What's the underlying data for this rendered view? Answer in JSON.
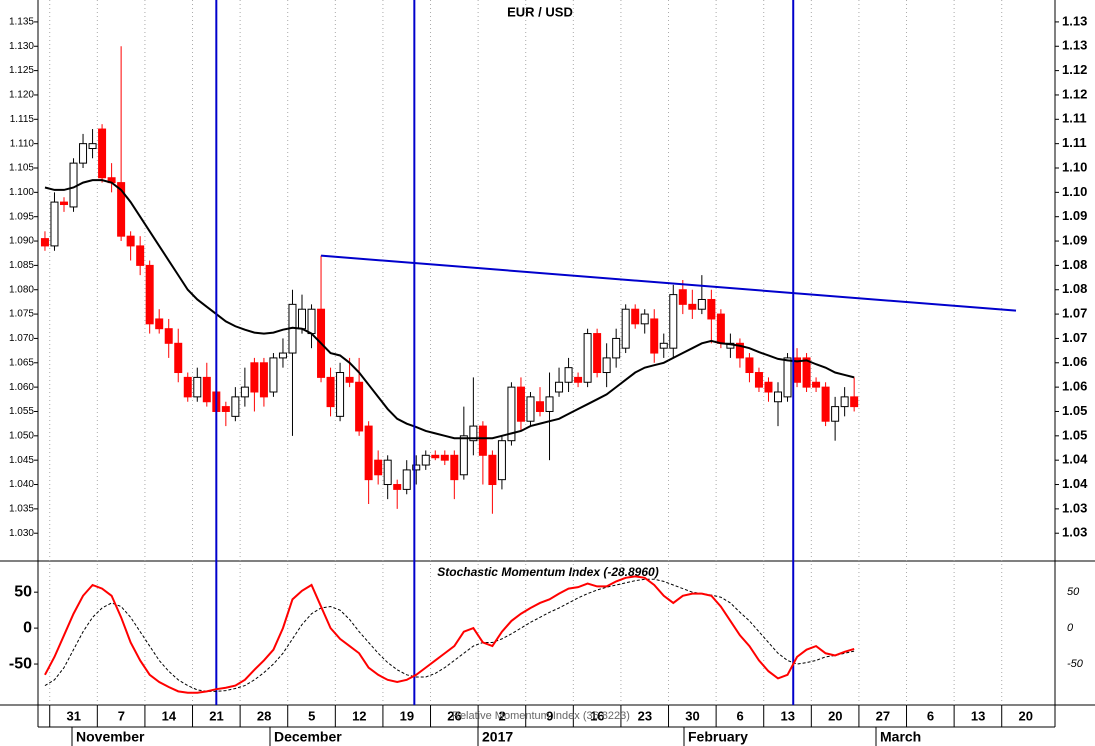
{
  "chart_data": {
    "type": "candlestick",
    "title": "EUR / USD",
    "categories": [
      null,
      "31",
      null,
      null,
      null,
      null,
      "7",
      null,
      null,
      null,
      null,
      "14",
      null,
      null,
      null,
      null,
      "21",
      null,
      null,
      null,
      null,
      "28",
      null,
      null,
      null,
      null,
      "5",
      null,
      null,
      null,
      null,
      "12",
      null,
      null,
      null,
      null,
      "19",
      null,
      null,
      null,
      null,
      "26",
      null,
      null,
      null,
      null,
      "2",
      null,
      null,
      null,
      null,
      "9",
      null,
      null,
      null,
      null,
      "16",
      null,
      null,
      null,
      null,
      "23",
      null,
      null,
      null,
      null,
      "30",
      null,
      null,
      null,
      null,
      "6",
      null,
      null,
      null,
      null,
      "13",
      null,
      null,
      null,
      null,
      "20",
      null,
      null,
      null,
      null,
      "27",
      null,
      null,
      null,
      null,
      "6",
      null,
      null,
      null,
      null,
      "13",
      null,
      null,
      null,
      null,
      "20",
      null,
      null,
      null,
      null
    ],
    "months": [
      "November",
      "December",
      "2017",
      "February",
      "March"
    ],
    "open": [
      1.0905,
      1.089,
      1.098,
      1.097,
      1.106,
      1.109,
      1.113,
      1.103,
      1.102,
      1.091,
      1.089,
      1.085,
      1.074,
      1.072,
      1.069,
      1.062,
      1.058,
      1.062,
      1.059,
      1.056,
      1.054,
      1.058,
      1.065,
      1.065,
      1.059,
      1.066,
      1.067,
      1.072,
      1.071,
      1.076,
      1.062,
      1.054,
      1.062,
      1.061,
      1.052,
      1.045,
      1.04,
      1.04,
      1.039,
      1.043,
      1.044,
      1.046,
      1.046,
      1.046,
      1.042,
      1.049,
      1.052,
      1.046,
      1.041,
      1.049,
      1.06,
      1.053,
      1.057,
      1.055,
      1.059,
      1.061,
      1.062,
      1.061,
      1.071,
      1.063,
      1.066,
      1.068,
      1.076,
      1.073,
      1.074,
      1.068,
      1.068,
      1.08,
      1.077,
      1.076,
      1.078,
      1.075,
      1.068,
      1.069,
      1.066,
      1.063,
      1.061,
      1.057,
      1.058,
      1.066,
      1.066,
      1.061,
      1.06,
      1.053,
      1.056,
      1.058,
      null,
      null,
      null,
      null,
      null,
      null,
      null,
      null,
      null,
      null,
      null,
      null,
      null,
      null,
      null,
      null,
      null,
      null,
      null,
      null
    ],
    "high": [
      1.092,
      1.1,
      1.099,
      1.107,
      1.112,
      1.113,
      1.114,
      1.106,
      1.13,
      1.092,
      1.091,
      1.086,
      1.076,
      1.074,
      1.072,
      1.063,
      1.064,
      1.065,
      1.061,
      1.057,
      1.06,
      1.064,
      1.066,
      1.066,
      1.067,
      1.07,
      1.08,
      1.079,
      1.077,
      1.087,
      1.064,
      1.065,
      1.066,
      1.066,
      1.053,
      1.047,
      1.046,
      1.041,
      1.045,
      1.046,
      1.047,
      1.047,
      1.047,
      1.047,
      1.056,
      1.062,
      1.053,
      1.047,
      1.05,
      1.061,
      1.062,
      1.059,
      1.06,
      1.063,
      1.064,
      1.066,
      1.063,
      1.072,
      1.072,
      1.069,
      1.072,
      1.077,
      1.077,
      1.076,
      1.076,
      1.071,
      1.081,
      1.082,
      1.08,
      1.083,
      1.08,
      1.076,
      1.071,
      1.07,
      1.067,
      1.064,
      1.062,
      1.061,
      1.067,
      1.068,
      1.067,
      1.062,
      1.061,
      1.058,
      1.06,
      1.062,
      null,
      null,
      null,
      null,
      null,
      null,
      null,
      null,
      null,
      null,
      null,
      null,
      null,
      null,
      null,
      null,
      null,
      null,
      null,
      null
    ],
    "low": [
      1.088,
      1.088,
      1.096,
      1.096,
      1.105,
      1.107,
      1.102,
      1.1,
      1.09,
      1.086,
      1.083,
      1.071,
      1.071,
      1.066,
      1.061,
      1.057,
      1.057,
      1.056,
      1.052,
      1.052,
      1.053,
      1.056,
      1.055,
      1.056,
      1.058,
      1.064,
      1.05,
      1.071,
      1.068,
      1.061,
      1.054,
      1.053,
      1.06,
      1.05,
      1.036,
      1.04,
      1.037,
      1.035,
      1.038,
      1.04,
      1.043,
      1.045,
      1.044,
      1.037,
      1.041,
      1.046,
      1.04,
      1.034,
      1.039,
      1.048,
      1.051,
      1.052,
      1.054,
      1.045,
      1.058,
      1.059,
      1.06,
      1.06,
      1.062,
      1.06,
      1.064,
      1.067,
      1.072,
      1.071,
      1.065,
      1.066,
      1.066,
      1.075,
      1.074,
      1.075,
      1.069,
      1.068,
      1.066,
      1.064,
      1.061,
      1.059,
      1.057,
      1.052,
      1.057,
      1.06,
      1.059,
      1.059,
      1.052,
      1.049,
      1.054,
      1.055,
      null,
      null,
      null,
      null,
      null,
      null,
      null,
      null,
      null,
      null,
      null,
      null,
      null,
      null,
      null,
      null,
      null,
      null,
      null,
      null
    ],
    "close": [
      1.089,
      1.098,
      1.0975,
      1.106,
      1.11,
      1.11,
      1.103,
      1.102,
      1.091,
      1.089,
      1.085,
      1.073,
      1.072,
      1.069,
      1.063,
      1.058,
      1.062,
      1.057,
      1.055,
      1.055,
      1.058,
      1.06,
      1.059,
      1.058,
      1.066,
      1.067,
      1.077,
      1.076,
      1.076,
      1.062,
      1.056,
      1.063,
      1.061,
      1.051,
      1.041,
      1.042,
      1.045,
      1.039,
      1.043,
      1.044,
      1.046,
      1.0455,
      1.045,
      1.041,
      1.05,
      1.052,
      1.046,
      1.04,
      1.049,
      1.06,
      1.053,
      1.058,
      1.055,
      1.058,
      1.061,
      1.064,
      1.061,
      1.071,
      1.063,
      1.066,
      1.07,
      1.076,
      1.073,
      1.075,
      1.067,
      1.069,
      1.079,
      1.077,
      1.076,
      1.078,
      1.074,
      1.069,
      1.069,
      1.066,
      1.063,
      1.06,
      1.059,
      1.059,
      1.066,
      1.061,
      1.06,
      1.06,
      1.053,
      1.056,
      1.058,
      1.056,
      null,
      null,
      null,
      null,
      null,
      null,
      null,
      null,
      null,
      null,
      null,
      null,
      null,
      null,
      null,
      null,
      null,
      null,
      null,
      null
    ],
    "up_color": "#ffffff",
    "down_color": "#ff0000",
    "moving_average": {
      "color": "#000000",
      "values": [
        1.101,
        1.1005,
        1.1005,
        1.101,
        1.102,
        1.1025,
        1.1025,
        1.102,
        1.1005,
        1.098,
        1.095,
        1.092,
        1.089,
        1.086,
        1.083,
        1.08,
        1.078,
        1.0765,
        1.075,
        1.0735,
        1.0725,
        1.0718,
        1.0712,
        1.071,
        1.0712,
        1.0718,
        1.0722,
        1.072,
        1.071,
        1.069,
        1.067,
        1.0665,
        1.065,
        1.063,
        1.0605,
        1.058,
        1.0555,
        1.0535,
        1.0525,
        1.0518,
        1.051,
        1.0505,
        1.05,
        1.0495,
        1.0495,
        1.0495,
        1.0495,
        1.0495,
        1.05,
        1.0505,
        1.051,
        1.052,
        1.0525,
        1.053,
        1.0535,
        1.0545,
        1.0555,
        1.0565,
        1.0575,
        1.0585,
        1.06,
        1.0615,
        1.063,
        1.064,
        1.0645,
        1.065,
        1.066,
        1.067,
        1.068,
        1.069,
        1.0695,
        1.069,
        1.0688,
        1.0685,
        1.068,
        1.0672,
        1.0665,
        1.0658,
        1.0655,
        1.0653,
        1.0655,
        1.0647,
        1.064,
        1.063,
        1.0625,
        1.062,
        null,
        null,
        null,
        null,
        null,
        null,
        null,
        null,
        null,
        null,
        null,
        null,
        null,
        null,
        null,
        null,
        null,
        null,
        null,
        null
      ]
    },
    "trendline": {
      "color": "#0000cc",
      "points": [
        [
          29,
          1.087
        ],
        [
          102,
          1.0757
        ]
      ]
    },
    "vlines": {
      "color": "#0000cc",
      "positions": [
        18,
        38.8,
        78.6
      ]
    },
    "ylim": [
      1.0245,
      1.1395
    ],
    "yticks": [
      {
        "value": 1.03,
        "label": "1.030"
      },
      {
        "value": 1.035,
        "label": "1.035"
      },
      {
        "value": 1.04,
        "label": "1.040"
      },
      {
        "value": 1.045,
        "label": "1.045"
      },
      {
        "value": 1.05,
        "label": "1.050"
      },
      {
        "value": 1.055,
        "label": "1.055"
      },
      {
        "value": 1.06,
        "label": "1.060"
      },
      {
        "value": 1.065,
        "label": "1.065"
      },
      {
        "value": 1.07,
        "label": "1.070"
      },
      {
        "value": 1.075,
        "label": "1.075"
      },
      {
        "value": 1.08,
        "label": "1.080"
      },
      {
        "value": 1.085,
        "label": "1.085"
      },
      {
        "value": 1.09,
        "label": "1.090"
      },
      {
        "value": 1.095,
        "label": "1.095"
      },
      {
        "value": 1.1,
        "label": "1.100"
      },
      {
        "value": 1.105,
        "label": "1.105"
      },
      {
        "value": 1.11,
        "label": "1.110"
      },
      {
        "value": 1.115,
        "label": "1.115"
      },
      {
        "value": 1.12,
        "label": "1.120"
      },
      {
        "value": 1.125,
        "label": "1.125"
      },
      {
        "value": 1.13,
        "label": "1.130"
      },
      {
        "value": 1.135,
        "label": "1.135"
      }
    ],
    "y2ticks": [
      {
        "value": 1.03,
        "label": "1.03"
      },
      {
        "value": 1.035,
        "label": "1.03"
      },
      {
        "value": 1.04,
        "label": "1.04"
      },
      {
        "value": 1.045,
        "label": "1.04"
      },
      {
        "value": 1.05,
        "label": "1.05"
      },
      {
        "value": 1.055,
        "label": "1.05"
      },
      {
        "value": 1.06,
        "label": "1.06"
      },
      {
        "value": 1.065,
        "label": "1.06"
      },
      {
        "value": 1.07,
        "label": "1.07"
      },
      {
        "value": 1.075,
        "label": "1.07"
      },
      {
        "value": 1.08,
        "label": "1.08"
      },
      {
        "value": 1.085,
        "label": "1.08"
      },
      {
        "value": 1.09,
        "label": "1.09"
      },
      {
        "value": 1.095,
        "label": "1.09"
      },
      {
        "value": 1.1,
        "label": "1.10"
      },
      {
        "value": 1.105,
        "label": "1.10"
      },
      {
        "value": 1.11,
        "label": "1.11"
      },
      {
        "value": 1.115,
        "label": "1.11"
      },
      {
        "value": 1.12,
        "label": "1.12"
      },
      {
        "value": 1.125,
        "label": "1.12"
      },
      {
        "value": 1.13,
        "label": "1.13"
      },
      {
        "value": 1.135,
        "label": "1.13"
      }
    ],
    "indicator": {
      "title": "Stochastic Momentum Index (-28.8960)",
      "overlay_text": "Relative Momentum Index (36.8223)",
      "ylim": [
        -107,
        92
      ],
      "yticks": [
        -50,
        0,
        50
      ],
      "smi": {
        "color": "#ff0000",
        "values": [
          -65,
          -40,
          -10,
          20,
          45,
          60,
          55,
          45,
          15,
          -20,
          -45,
          -65,
          -75,
          -82,
          -88,
          -90,
          -90,
          -88,
          -85,
          -83,
          -80,
          -72,
          -58,
          -45,
          -30,
          0,
          40,
          52,
          60,
          30,
          0,
          -15,
          -25,
          -35,
          -55,
          -65,
          -72,
          -75,
          -72,
          -65,
          -55,
          -45,
          -35,
          -25,
          -5,
          0,
          -20,
          -25,
          -5,
          10,
          20,
          28,
          35,
          40,
          48,
          55,
          57,
          62,
          58,
          58,
          65,
          70,
          72,
          70,
          60,
          45,
          35,
          45,
          48,
          48,
          45,
          30,
          10,
          -10,
          -25,
          -45,
          -60,
          -70,
          -65,
          -40,
          -30,
          -25,
          -35,
          -38,
          -33,
          -29,
          null,
          null,
          null,
          null,
          null,
          null,
          null,
          null,
          null,
          null,
          null,
          null,
          null,
          null,
          null,
          null,
          null,
          null,
          null,
          null
        ]
      },
      "signal": {
        "color": "#000000",
        "values": [
          -80,
          -72,
          -55,
          -30,
          -5,
          15,
          28,
          35,
          30,
          15,
          -5,
          -25,
          -45,
          -60,
          -72,
          -80,
          -86,
          -88,
          -88,
          -87,
          -84,
          -80,
          -72,
          -62,
          -50,
          -35,
          -15,
          5,
          20,
          28,
          30,
          25,
          12,
          -5,
          -20,
          -35,
          -48,
          -58,
          -65,
          -68,
          -68,
          -63,
          -55,
          -45,
          -35,
          -25,
          -20,
          -20,
          -15,
          -8,
          0,
          8,
          15,
          22,
          28,
          35,
          42,
          48,
          53,
          57,
          60,
          63,
          66,
          68,
          68,
          65,
          60,
          55,
          50,
          48,
          46,
          43,
          35,
          22,
          10,
          -5,
          -20,
          -35,
          -45,
          -50,
          -48,
          -45,
          -40,
          -38,
          -35,
          -32,
          null,
          null,
          null,
          null,
          null,
          null,
          null,
          null,
          null,
          null,
          null,
          null,
          null,
          null,
          null,
          null,
          null,
          null,
          null,
          null
        ]
      }
    }
  }
}
